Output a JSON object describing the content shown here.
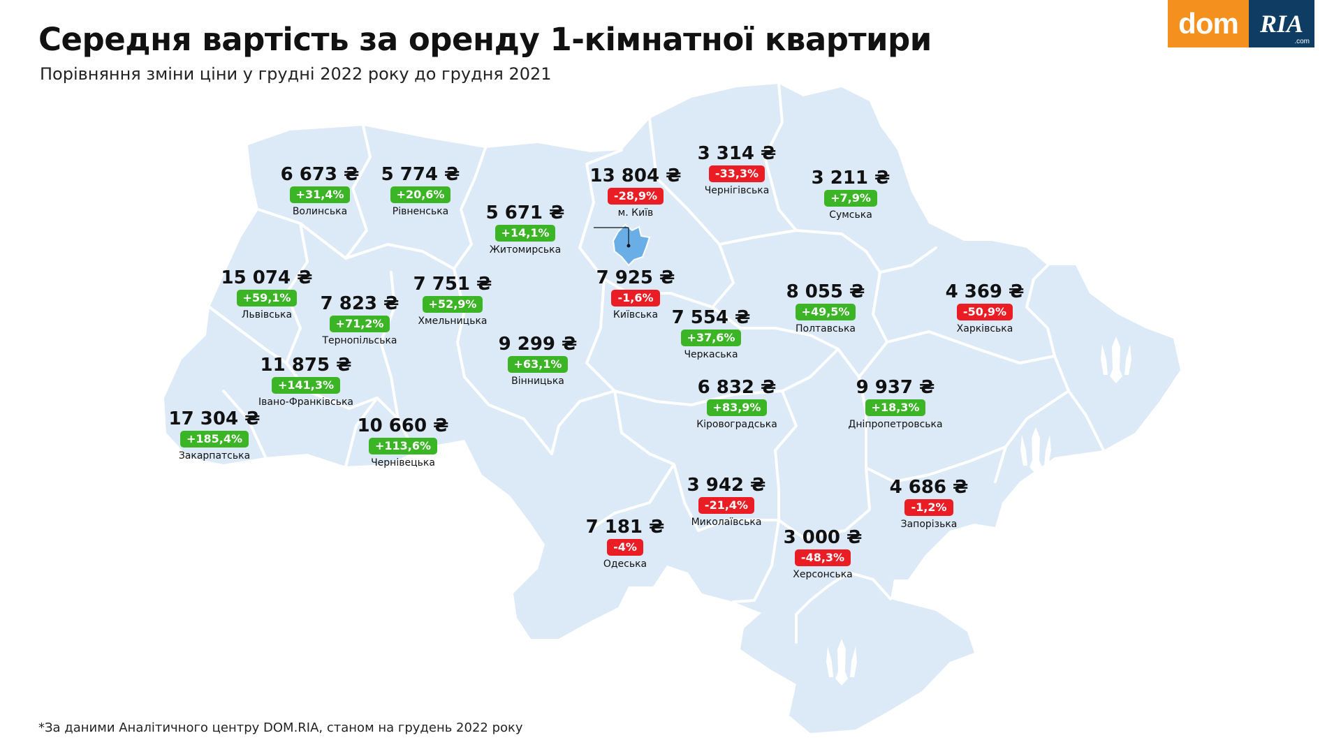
{
  "title": "Середня вартість за оренду 1-кімнатної квартири",
  "subtitle": "Порівняння зміни ціни у грудні 2022 року до грудня 2021",
  "footnote": "*За даними Аналітичного центру DOM.RIA, станом на грудень 2022 року",
  "logo": {
    "part1": "dom",
    "part2": "RIA",
    "suffix": ".com"
  },
  "colors": {
    "map_fill": "#dce9f6",
    "border": "#ffffff",
    "positive": "#3bb526",
    "negative": "#ea1c24",
    "accent_orange": "#f4901e",
    "accent_navy": "#0f3c63",
    "kyiv_city": "#6aaee8"
  },
  "icons": [
    "trident-icon"
  ],
  "regions": [
    {
      "key": "volynska",
      "name": "Волинська",
      "price": "6 673 ₴",
      "change": "+31,4%"
    },
    {
      "key": "rivnenska",
      "name": "Рівненська",
      "price": "5 774 ₴",
      "change": "+20,6%"
    },
    {
      "key": "zhytomyrska",
      "name": "Житомирська",
      "price": "5 671 ₴",
      "change": "+14,1%"
    },
    {
      "key": "kyiv-city",
      "name": "м. Київ",
      "price": "13 804 ₴",
      "change": "-28,9%"
    },
    {
      "key": "chernihivska",
      "name": "Чернігівська",
      "price": "3 314 ₴",
      "change": "-33,3%"
    },
    {
      "key": "sumska",
      "name": "Сумська",
      "price": "3 211 ₴",
      "change": "+7,9%"
    },
    {
      "key": "lvivska",
      "name": "Львівська",
      "price": "15 074 ₴",
      "change": "+59,1%"
    },
    {
      "key": "ternopilska",
      "name": "Тернопільська",
      "price": "7 823 ₴",
      "change": "+71,2%"
    },
    {
      "key": "khmelnytska",
      "name": "Хмельницька",
      "price": "7 751 ₴",
      "change": "+52,9%"
    },
    {
      "key": "kyivska",
      "name": "Київська",
      "price": "7 925 ₴",
      "change": "-1,6%"
    },
    {
      "key": "cherkaska",
      "name": "Черкаська",
      "price": "7 554 ₴",
      "change": "+37,6%"
    },
    {
      "key": "poltavska",
      "name": "Полтавська",
      "price": "8 055 ₴",
      "change": "+49,5%"
    },
    {
      "key": "kharkivska",
      "name": "Харківська",
      "price": "4 369 ₴",
      "change": "-50,9%"
    },
    {
      "key": "ivano-frankivska",
      "name": "Івано-Франківська",
      "price": "11 875 ₴",
      "change": "+141,3%"
    },
    {
      "key": "vinnytska",
      "name": "Вінницька",
      "price": "9 299 ₴",
      "change": "+63,1%"
    },
    {
      "key": "kirovohradska",
      "name": "Кіровоградська",
      "price": "6 832 ₴",
      "change": "+83,9%"
    },
    {
      "key": "dnipropetrovska",
      "name": "Дніпропетровська",
      "price": "9 937 ₴",
      "change": "+18,3%"
    },
    {
      "key": "zakarpatska",
      "name": "Закарпатська",
      "price": "17 304 ₴",
      "change": "+185,4%"
    },
    {
      "key": "chernivetska",
      "name": "Чернівецька",
      "price": "10 660 ₴",
      "change": "+113,6%"
    },
    {
      "key": "mykolaivska",
      "name": "Миколаївська",
      "price": "3 942 ₴",
      "change": "-21,4%"
    },
    {
      "key": "zaporizka",
      "name": "Запорізька",
      "price": "4 686 ₴",
      "change": "-1,2%"
    },
    {
      "key": "odeska",
      "name": "Одеська",
      "price": "7 181 ₴",
      "change": "-4%"
    },
    {
      "key": "khersonska",
      "name": "Херсонська",
      "price": "3 000 ₴",
      "change": "-48,3%"
    }
  ]
}
